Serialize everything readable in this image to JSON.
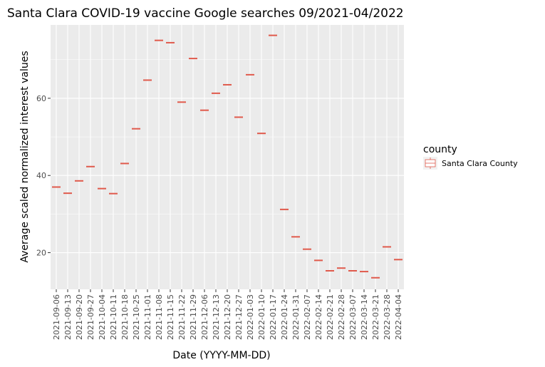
{
  "chart_data": {
    "type": "boxplot",
    "title": "Santa Clara COVID-19 vaccine Google searches 09/2021-04/2022",
    "xlabel": "Date (YYYY-MM-DD)",
    "ylabel": "Average scaled normalized interest values",
    "ylim": [
      10.5,
      79
    ],
    "yticks": [
      20,
      40,
      60
    ],
    "grid": true,
    "legend": {
      "title": "county",
      "placement": "right"
    },
    "categories": [
      "2021-09-06",
      "2021-09-13",
      "2021-09-20",
      "2021-09-27",
      "2021-10-04",
      "2021-10-11",
      "2021-10-18",
      "2021-10-25",
      "2021-11-01",
      "2021-11-08",
      "2021-11-15",
      "2021-11-22",
      "2021-11-29",
      "2021-12-06",
      "2021-12-13",
      "2021-12-20",
      "2021-12-27",
      "2022-01-03",
      "2022-01-10",
      "2022-01-17",
      "2022-01-24",
      "2022-01-31",
      "2022-02-07",
      "2022-02-14",
      "2022-02-21",
      "2022-02-28",
      "2022-03-07",
      "2022-03-14",
      "2022-03-21",
      "2022-03-28",
      "2022-04-04"
    ],
    "series": [
      {
        "name": "Santa Clara County",
        "color": "#e05a4c",
        "values": [
          37.0,
          35.4,
          38.6,
          42.3,
          36.6,
          35.3,
          43.1,
          52.1,
          64.7,
          75.0,
          74.4,
          59.0,
          70.3,
          56.9,
          61.3,
          63.5,
          55.1,
          66.1,
          50.9,
          76.3,
          31.2,
          24.1,
          20.9,
          18.0,
          15.3,
          16.0,
          15.3,
          15.1,
          13.5,
          21.5,
          18.2
        ]
      }
    ]
  }
}
